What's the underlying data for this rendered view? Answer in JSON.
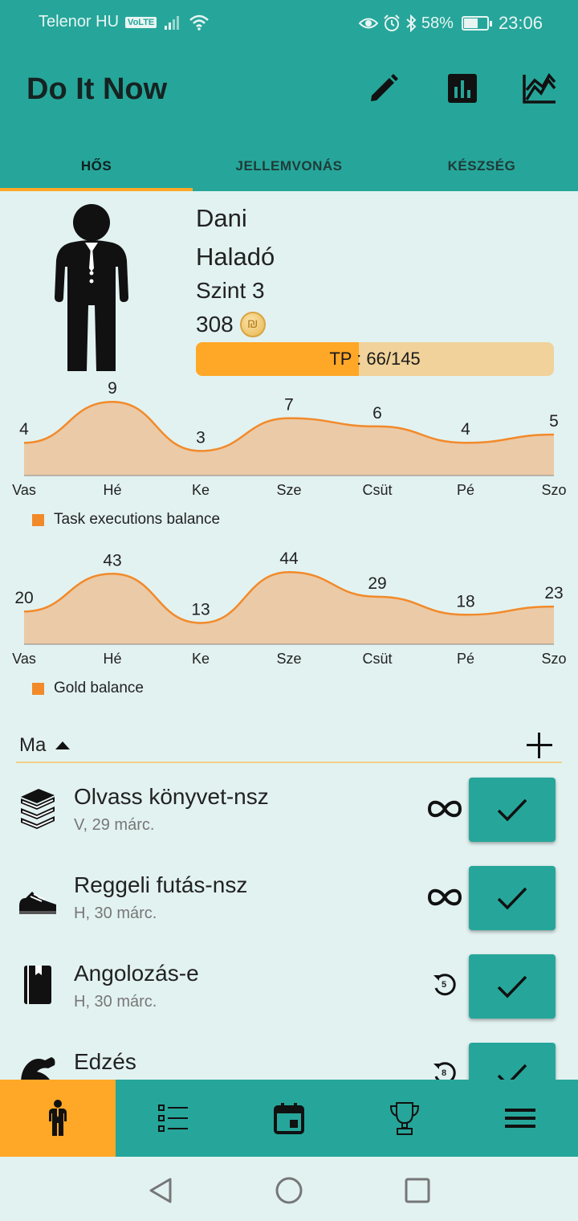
{
  "status_bar": {
    "carrier": "Telenor HU",
    "volte": "VoLTE",
    "battery": "58%",
    "time": "23:06"
  },
  "app": {
    "title": "Do It Now",
    "actions": [
      {
        "name": "edit-icon"
      },
      {
        "name": "bar-chart-icon"
      },
      {
        "name": "line-chart-icon"
      }
    ]
  },
  "tabs": [
    {
      "label": "HŐS",
      "active": true
    },
    {
      "label": "JELLEMVONÁS",
      "active": false
    },
    {
      "label": "KÉSZSÉG",
      "active": false
    }
  ],
  "hero": {
    "name": "Dani",
    "class": "Haladó",
    "level": "Szint 3",
    "gold": "308",
    "tp_label": "TP : 66/145",
    "tp_current": 66,
    "tp_max": 145
  },
  "chart_data": [
    {
      "type": "area",
      "categories": [
        "Vas",
        "Hé",
        "Ke",
        "Sze",
        "Csüt",
        "Pé",
        "Szo"
      ],
      "values": [
        4,
        9,
        3,
        7,
        6,
        4,
        5
      ],
      "legend": "Task executions balance",
      "color": "#f28a2a",
      "fill": "#ebcaa7",
      "ylim": [
        0,
        10
      ],
      "grid": false,
      "legend_position": "bottom-left"
    },
    {
      "type": "area",
      "categories": [
        "Vas",
        "Hé",
        "Ke",
        "Sze",
        "Csüt",
        "Pé",
        "Szo"
      ],
      "values": [
        20,
        43,
        13,
        44,
        29,
        18,
        23
      ],
      "legend": "Gold balance",
      "color": "#f28a2a",
      "fill": "#ebcaa7",
      "ylim": [
        0,
        50
      ],
      "grid": false,
      "legend_position": "bottom-left"
    }
  ],
  "list": {
    "header": "Ma",
    "tasks": [
      {
        "name": "Olvass könyvet-nsz",
        "date": "V, 29 márc.",
        "icon": "books-icon",
        "mode": "infinity-icon"
      },
      {
        "name": "Reggeli futás-nsz",
        "date": "H, 30 márc.",
        "icon": "sneaker-icon",
        "mode": "infinity-icon"
      },
      {
        "name": "Angolozás-e",
        "date": "H, 30 márc.",
        "icon": "book-icon",
        "mode": "repeat-icon",
        "repeat_count": "5"
      },
      {
        "name": "Edzés",
        "date": "",
        "icon": "muscle-icon",
        "mode": "repeat-icon",
        "repeat_count": "8"
      }
    ]
  },
  "bottom_nav": [
    {
      "name": "hero-nav-icon",
      "active": true
    },
    {
      "name": "tasks-nav-icon",
      "active": false
    },
    {
      "name": "calendar-nav-icon",
      "active": false
    },
    {
      "name": "trophy-nav-icon",
      "active": false
    },
    {
      "name": "menu-nav-icon",
      "active": false
    }
  ]
}
